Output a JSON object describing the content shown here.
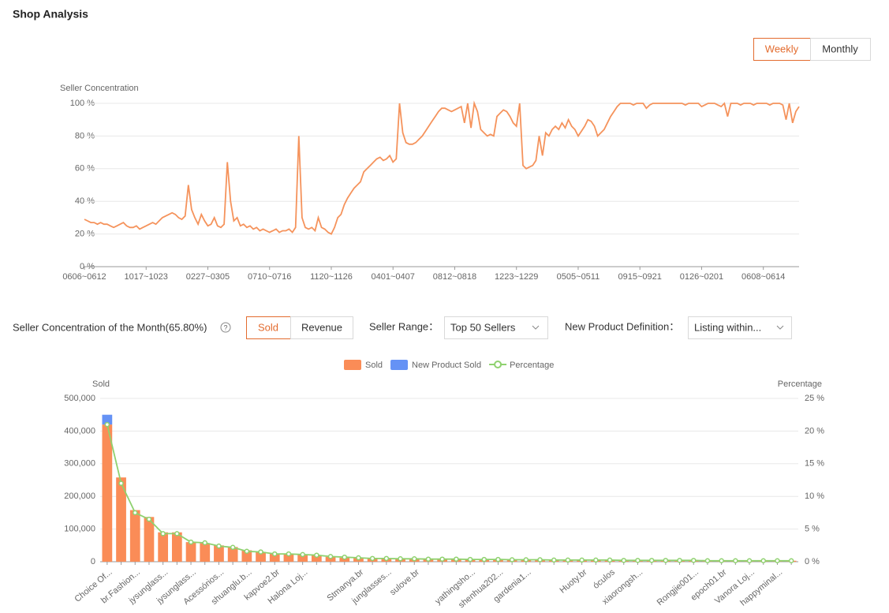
{
  "header": {
    "title": "Shop Analysis"
  },
  "period_toggle": {
    "options": [
      "Weekly",
      "Monthly"
    ],
    "active": 0
  },
  "controls": {
    "summary": "Seller Concentration of the Month(65.80%)",
    "metric_toggle": {
      "options": [
        "Sold",
        "Revenue"
      ],
      "active": 0
    },
    "seller_range_label": "Seller Range：",
    "seller_range_value": "Top 50 Sellers",
    "new_product_label": "New Product Definition：",
    "new_product_value": "Listing within..."
  },
  "chart_data": [
    {
      "type": "line",
      "y_label": "Seller Concentration",
      "color": "#f5935c",
      "grid": true,
      "ylim": [
        0,
        100
      ],
      "yticks": [
        {
          "value": 0,
          "label": "0 %"
        },
        {
          "value": 20,
          "label": "20 %"
        },
        {
          "value": 40,
          "label": "40 %"
        },
        {
          "value": 60,
          "label": "60 %"
        },
        {
          "value": 80,
          "label": "80 %"
        },
        {
          "value": 100,
          "label": "100 %"
        }
      ],
      "categories": [
        "0606~0612",
        null,
        null,
        null,
        null,
        null,
        null,
        null,
        null,
        null,
        null,
        null,
        null,
        null,
        null,
        null,
        null,
        null,
        null,
        "1017~1023",
        null,
        null,
        null,
        null,
        null,
        null,
        null,
        null,
        null,
        null,
        null,
        null,
        null,
        null,
        null,
        null,
        null,
        null,
        "0227~0305",
        null,
        null,
        null,
        null,
        null,
        null,
        null,
        null,
        null,
        null,
        null,
        null,
        null,
        null,
        null,
        null,
        null,
        null,
        "0710~0716",
        null,
        null,
        null,
        null,
        null,
        null,
        null,
        null,
        null,
        null,
        null,
        null,
        null,
        null,
        null,
        null,
        null,
        null,
        "1120~1126",
        null,
        null,
        null,
        null,
        null,
        null,
        null,
        null,
        null,
        null,
        null,
        null,
        null,
        null,
        null,
        null,
        null,
        null,
        "0401~0407",
        null,
        null,
        null,
        null,
        null,
        null,
        null,
        null,
        null,
        null,
        null,
        null,
        null,
        null,
        null,
        null,
        null,
        null,
        "0812~0818",
        null,
        null,
        null,
        null,
        null,
        null,
        null,
        null,
        null,
        null,
        null,
        null,
        null,
        null,
        null,
        null,
        null,
        null,
        "1223~1229",
        null,
        null,
        null,
        null,
        null,
        null,
        null,
        null,
        null,
        null,
        null,
        null,
        null,
        null,
        null,
        null,
        null,
        null,
        "0505~0511",
        null,
        null,
        null,
        null,
        null,
        null,
        null,
        null,
        null,
        null,
        null,
        null,
        null,
        null,
        null,
        null,
        null,
        null,
        "0915~0921",
        null,
        null,
        null,
        null,
        null,
        null,
        null,
        null,
        null,
        null,
        null,
        null,
        null,
        null,
        null,
        null,
        null,
        null,
        "0126~0201",
        null,
        null,
        null,
        null,
        null,
        null,
        null,
        null,
        null,
        null,
        null,
        null,
        null,
        null,
        null,
        null,
        null,
        null,
        "0608~0614",
        null,
        null,
        null,
        null,
        null,
        null,
        null,
        null,
        null,
        null,
        null
      ],
      "values": [
        29,
        28,
        27,
        27,
        26,
        27,
        26,
        26,
        25,
        24,
        25,
        26,
        27,
        25,
        24,
        24,
        25,
        23,
        24,
        25,
        26,
        27,
        26,
        28,
        30,
        31,
        32,
        33,
        32,
        30,
        29,
        31,
        50,
        35,
        30,
        26,
        32,
        28,
        25,
        26,
        30,
        25,
        24,
        26,
        64,
        40,
        28,
        30,
        25,
        26,
        24,
        25,
        23,
        24,
        22,
        23,
        22,
        21,
        22,
        23,
        21,
        22,
        22,
        23,
        21,
        24,
        80,
        30,
        24,
        23,
        24,
        22,
        30,
        24,
        23,
        21,
        20,
        24,
        30,
        32,
        38,
        42,
        45,
        48,
        50,
        52,
        58,
        60,
        62,
        64,
        66,
        67,
        65,
        66,
        68,
        64,
        66,
        100,
        82,
        76,
        75,
        75,
        76,
        78,
        80,
        83,
        86,
        89,
        92,
        95,
        97,
        97,
        96,
        95,
        96,
        97,
        98,
        88,
        100,
        85,
        100,
        95,
        84,
        82,
        80,
        81,
        80,
        92,
        94,
        96,
        95,
        92,
        88,
        86,
        100,
        62,
        60,
        61,
        62,
        65,
        80,
        68,
        82,
        80,
        84,
        86,
        84,
        88,
        85,
        90,
        86,
        84,
        80,
        83,
        86,
        90,
        89,
        86,
        80,
        82,
        84,
        88,
        92,
        95,
        98,
        100,
        100,
        100,
        100,
        99,
        100,
        100,
        100,
        97,
        99,
        100,
        100,
        100,
        100,
        100,
        100,
        100,
        100,
        100,
        100,
        99,
        100,
        100,
        100,
        100,
        98,
        99,
        100,
        100,
        100,
        99,
        98,
        100,
        92,
        100,
        100,
        100,
        99,
        100,
        100,
        100,
        99,
        100,
        100,
        100,
        100,
        99,
        100,
        100,
        100,
        99,
        90,
        100,
        88,
        95,
        98
      ]
    },
    {
      "type": "bar",
      "y_label": "Sold",
      "y2_label": "Percentage",
      "grid": true,
      "legend": "top",
      "ylim": [
        0,
        500000
      ],
      "yticks": [
        0,
        {
          "value": 100000,
          "label": "100,000"
        },
        {
          "value": 200000,
          "label": "200,000"
        },
        {
          "value": 300000,
          "label": "300,000"
        },
        {
          "value": 400000,
          "label": "400,000"
        },
        {
          "value": 500000,
          "label": "500,000"
        }
      ],
      "y2lim": [
        0,
        25
      ],
      "y2ticks": [
        {
          "value": 0,
          "label": "0 %"
        },
        {
          "value": 5,
          "label": "5 %"
        },
        {
          "value": 10,
          "label": "10 %"
        },
        {
          "value": 15,
          "label": "15 %"
        },
        {
          "value": 20,
          "label": "20 %"
        },
        {
          "value": 25,
          "label": "25 %"
        }
      ],
      "categories": [
        "Choice Of...",
        null,
        "br.Fashion...",
        null,
        "jysunglass...",
        null,
        "jysunglass...",
        null,
        "Acessórios...",
        null,
        "shuanglu.b...",
        null,
        "kapvoe2.br",
        null,
        "Halona Loj...",
        null,
        null,
        null,
        "Stmanya.br",
        null,
        "junglasses...",
        null,
        "sulove.br",
        null,
        null,
        null,
        "yathingsho...",
        null,
        "shenhua202...",
        null,
        "gardenia1...",
        null,
        null,
        null,
        "Huoty.br",
        null,
        "óculos",
        null,
        "xiaorongsh...",
        null,
        null,
        null,
        "Rongjie001...",
        null,
        "epoch01.br",
        null,
        "Vanora Loj...",
        null,
        "happyminal...",
        null
      ],
      "series": [
        {
          "name": "Sold",
          "color": "#fa8c57",
          "values": [
            420000,
            258000,
            158000,
            137000,
            90000,
            90000,
            60000,
            57000,
            50000,
            45000,
            35000,
            30000,
            25000,
            24000,
            22000,
            20000,
            15000,
            12000,
            11000,
            10000,
            10000,
            9000,
            9000,
            8000,
            8000,
            8000,
            7000,
            7000,
            7000,
            6000,
            6000,
            6000,
            5000,
            5000,
            5000,
            5000,
            5000,
            4000,
            4000,
            4000,
            4000,
            4000,
            4000,
            3000,
            3000,
            3000,
            3000,
            3000,
            3000,
            3000
          ]
        },
        {
          "name": "New Product Sold",
          "color": "#6592f5",
          "values": [
            30000,
            0,
            0,
            0,
            0,
            0,
            0,
            0,
            0,
            0,
            0,
            0,
            0,
            0,
            0,
            0,
            0,
            0,
            0,
            0,
            0,
            0,
            0,
            0,
            0,
            0,
            0,
            0,
            0,
            0,
            0,
            0,
            0,
            0,
            0,
            0,
            0,
            0,
            0,
            0,
            0,
            0,
            0,
            0,
            0,
            0,
            0,
            0,
            0,
            0
          ]
        },
        {
          "name": "Percentage",
          "color": "#8fd16f",
          "axis": "y2",
          "values": [
            21,
            12,
            7.5,
            6.5,
            4.3,
            4.3,
            3,
            2.9,
            2.4,
            2.2,
            1.6,
            1.5,
            1.2,
            1.2,
            1.1,
            1.0,
            0.8,
            0.7,
            0.6,
            0.5,
            0.5,
            0.45,
            0.45,
            0.4,
            0.4,
            0.4,
            0.35,
            0.35,
            0.35,
            0.3,
            0.3,
            0.3,
            0.25,
            0.25,
            0.25,
            0.25,
            0.25,
            0.2,
            0.2,
            0.2,
            0.2,
            0.2,
            0.2,
            0.15,
            0.15,
            0.15,
            0.15,
            0.15,
            0.15,
            0.15
          ]
        }
      ]
    }
  ]
}
